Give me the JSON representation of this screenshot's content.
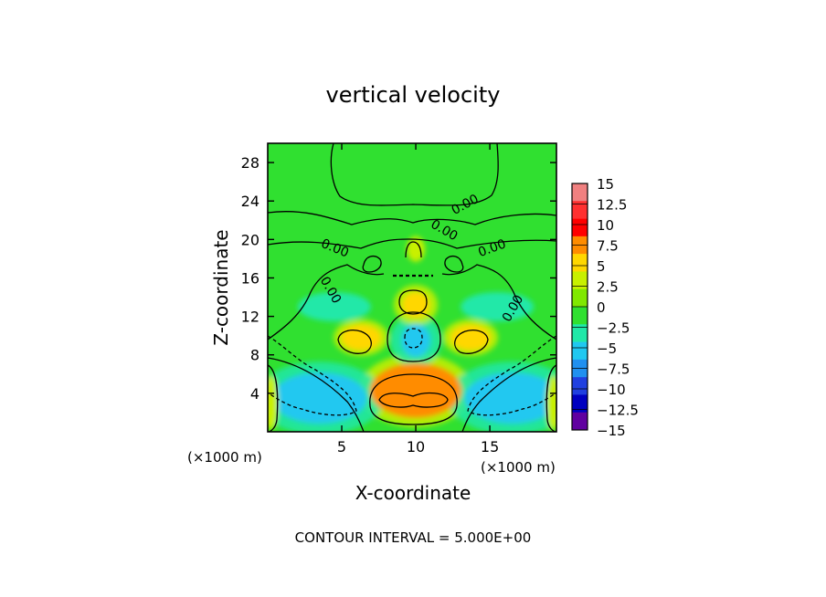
{
  "chart_data": {
    "type": "heatmap",
    "title": "vertical velocity",
    "xlabel": "X-coordinate",
    "ylabel": "Z-coordinate",
    "x_unit_label": "(×1000 m)",
    "x_unit_label_right": "(×1000 m)",
    "xlim": [
      0,
      19.5
    ],
    "ylim": [
      0,
      30
    ],
    "xticks": [
      5,
      10,
      15
    ],
    "yticks": [
      4,
      8,
      12,
      16,
      20,
      24,
      28
    ],
    "footer": "CONTOUR INTERVAL = 5.000E+00",
    "contour_label": "0.00",
    "colorbar": {
      "levels": [
        "15",
        "12.5",
        "10",
        "7.5",
        "5",
        "2.5",
        "0",
        "−2.5",
        "−5",
        "−7.5",
        "−10",
        "−12.5",
        "−15"
      ],
      "colors": [
        "#f08080",
        "#ff3030",
        "#ff0000",
        "#ff8c00",
        "#ffd700",
        "#c8f000",
        "#80e800",
        "#30e030",
        "#20e8a8",
        "#20c8f0",
        "#2090f0",
        "#2040e0",
        "#0000c0",
        "#6000a0"
      ]
    },
    "features": [
      {
        "name": "strong-updraft",
        "x": 10,
        "z": 3.2,
        "w": 13.5
      },
      {
        "name": "updraft-core",
        "x": 10,
        "z": 4.3,
        "w": 8
      },
      {
        "name": "downdraft-left",
        "x": 3.5,
        "z": 3.5,
        "w": -6
      },
      {
        "name": "downdraft-right",
        "x": 16.5,
        "z": 3.5,
        "w": -6
      },
      {
        "name": "central-downdraft",
        "x": 10,
        "z": 9.5,
        "w": -5.5
      },
      {
        "name": "side-updraft-left",
        "x": 6.3,
        "z": 9.8,
        "w": 5.5
      },
      {
        "name": "side-updraft-right",
        "x": 13.7,
        "z": 9.8,
        "w": 5.5
      },
      {
        "name": "upper-updraft",
        "x": 10,
        "z": 13.2,
        "w": 6
      },
      {
        "name": "cyan-left",
        "x": 4.5,
        "z": 13,
        "w": -3.5
      },
      {
        "name": "cyan-right",
        "x": 15.5,
        "z": 13,
        "w": -3.5
      },
      {
        "name": "top-plume",
        "x": 10,
        "z": 19,
        "w": 3
      },
      {
        "name": "edge-updraft-left",
        "x": 0.2,
        "z": 3,
        "w": 4.5
      },
      {
        "name": "edge-updraft-right",
        "x": 19.3,
        "z": 3,
        "w": 4.5
      }
    ]
  }
}
